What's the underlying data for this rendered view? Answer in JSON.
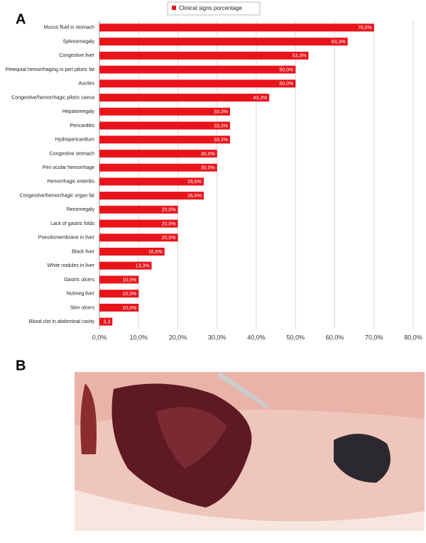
{
  "panels": {
    "a": "A",
    "b": "B"
  },
  "chart_data": {
    "type": "hbar",
    "categories": [
      "Mucus fluid in stomach",
      "Splenomegaly",
      "Congestive liver",
      "Petequial hemorrhaging in peri piloric fat",
      "Ascites",
      "Congestive/hemorrhagic piloric caeca",
      "Hepatomegaly",
      "Pericarditis",
      "Hydropericardium",
      "Congestive stomach",
      "Peri ocular hemorrhage",
      "Hemorrhagic enteritis",
      "Congestive/hemorrhagic organ fat",
      "Renomegaly",
      "Lack of gastric folds",
      "Pseudomembrane in liver",
      "Black liver",
      "White nodules in liver",
      "Gastric ulcers",
      "Nutmeg liver",
      "Skin ulcers",
      "Blood clot in abdominal cavity"
    ],
    "series": [
      {
        "name": "Clinical signs porcentage",
        "color": "#e8141a",
        "values": [
          70,
          63.3,
          53.3,
          50,
          50,
          43.3,
          33.3,
          33.3,
          33.3,
          30,
          30,
          26.6,
          26.6,
          20,
          20,
          20,
          16.6,
          13.3,
          10,
          10,
          10,
          3.3
        ],
        "value_labels": [
          "70,0%",
          "63,3%",
          "53,3%",
          "50,0%",
          "50,0%",
          "43,3%",
          "33,3%",
          "33,3%",
          "33,3%",
          "30,0%",
          "30,0%",
          "26,6%",
          "26,6%",
          "20,0%",
          "20,0%",
          "20,0%",
          "16,6%",
          "13,3%",
          "10,0%",
          "10,0%",
          "10,0%",
          "3,3"
        ]
      }
    ],
    "xlim": [
      0,
      80
    ],
    "xticks": [
      {
        "value": 0,
        "label": "0,0%"
      },
      {
        "value": 10,
        "label": "10,0%"
      },
      {
        "value": 20,
        "label": "20,0%"
      },
      {
        "value": 30,
        "label": "30,0%"
      },
      {
        "value": 40,
        "label": "40,0%"
      },
      {
        "value": 50,
        "label": "50,0%"
      },
      {
        "value": 60,
        "label": "60,0%"
      },
      {
        "value": 70,
        "label": "70,0%"
      },
      {
        "value": 80,
        "label": "80,0%"
      }
    ],
    "grid": true,
    "legend": "top"
  }
}
